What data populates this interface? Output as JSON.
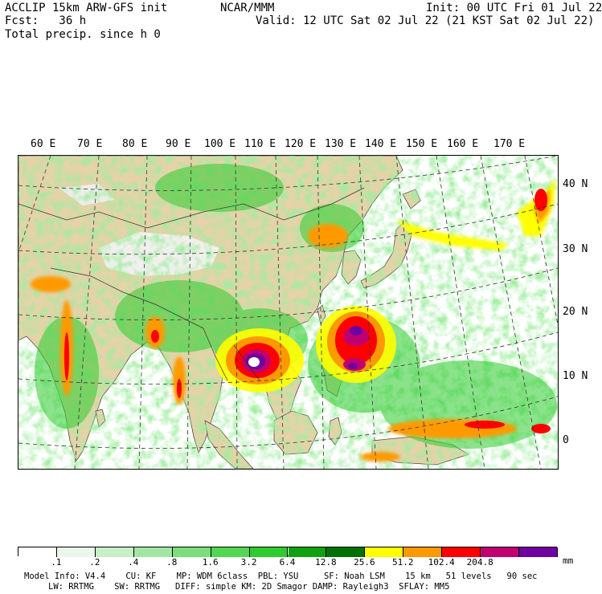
{
  "header": {
    "line1_left": "ACCLIP 15km ARW-GFS init",
    "line1_center": "NCAR/MMM",
    "line1_right": "Init: 00 UTC Fri 01 Jul 22",
    "line2_left": "Fcst:   36 h",
    "line2_right": "Valid: 12 UTC Sat 02 Jul 22 (21 KST Sat 02 Jul 22)",
    "line3_left": "Total precip. since h 0"
  },
  "map": {
    "lon_labels": [
      "60 E",
      "70 E",
      "80 E",
      "90 E",
      "100 E",
      "110 E",
      "120 E",
      "130 E",
      "140 E",
      "150 E",
      "160 E",
      "170 E"
    ],
    "lat_labels": [
      "40 N",
      "30 N",
      "20 N",
      "10 N",
      "0"
    ],
    "colors": {
      "ocean": "#ffffff",
      "land": "#e6d2a8",
      "snow": "#f2f2f2"
    }
  },
  "colorbar": {
    "unit": "mm",
    "labels": [
      ".1",
      ".2",
      ".4",
      ".8",
      "1.6",
      "3.2",
      "6.4",
      "12.8",
      "25.6",
      "51.2",
      "102.4",
      "204.8"
    ],
    "colors": [
      "#ffffff",
      "#eaf7ea",
      "#c9efc9",
      "#a3e6a3",
      "#7adf7a",
      "#52d752",
      "#2ecc2e",
      "#10a010",
      "#007000",
      "#ffff00",
      "#ff9900",
      "#ff0000",
      "#bf0070",
      "#7000a0"
    ]
  },
  "footer": {
    "line1": "Model Info: V4.4    CU: KF    MP: WDM 6class  PBL: YSU     SF: Noah LSM    15 km   51 levels   90 sec",
    "line2": "LW: RRTMG    SW: RRTMG   DIFF: simple KM: 2D Smagor DAMP: Rayleigh3  SFLAY: MM5"
  }
}
